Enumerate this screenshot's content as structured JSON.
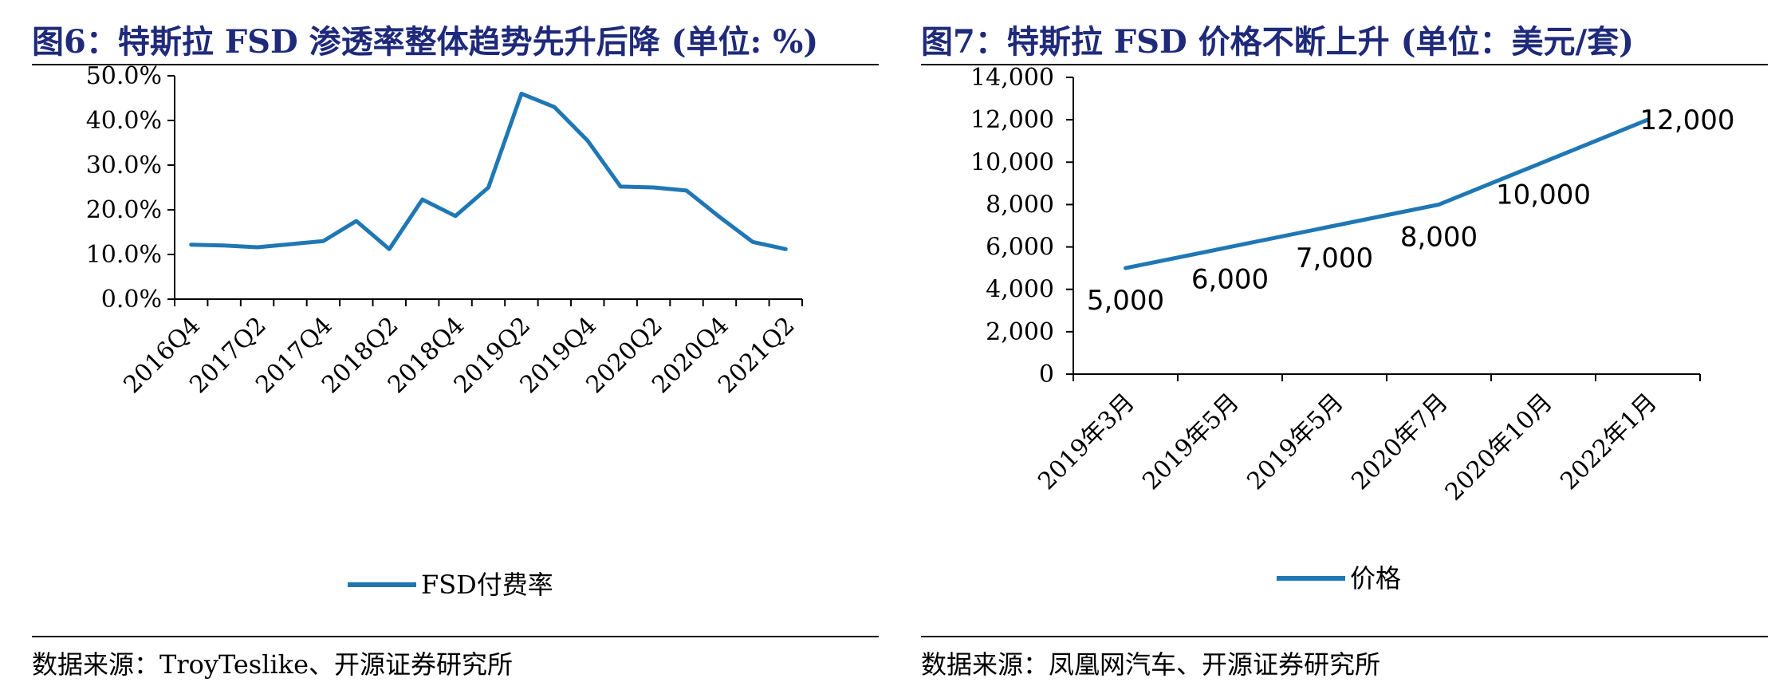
{
  "chart_data": [
    {
      "type": "line",
      "title": "图6：特斯拉 FSD 渗透率整体趋势先升后降 (单位: %)",
      "source": "数据来源：TroyTeslike、开源证券研究所",
      "categories": [
        "2016Q4",
        "2017Q1",
        "2017Q2",
        "2017Q3",
        "2017Q4",
        "2018Q1",
        "2018Q2",
        "2018Q3",
        "2018Q4",
        "2019Q1",
        "2019Q2",
        "2019Q3",
        "2019Q4",
        "2020Q1",
        "2020Q2",
        "2020Q3",
        "2020Q4",
        "2021Q1",
        "2021Q2"
      ],
      "x_tick_labels": [
        "2016Q4",
        "2017Q2",
        "2017Q4",
        "2018Q2",
        "2018Q4",
        "2019Q2",
        "2019Q4",
        "2020Q2",
        "2020Q4",
        "2021Q2"
      ],
      "y_tick_labels": [
        "0.0%",
        "10.0%",
        "20.0%",
        "30.0%",
        "40.0%",
        "50.0%"
      ],
      "ylim": [
        0,
        50
      ],
      "series": [
        {
          "name": "FSD付费率",
          "values": [
            12.2,
            12.0,
            11.6,
            12.3,
            13.0,
            17.5,
            11.2,
            22.3,
            18.6,
            25.0,
            46.0,
            43.0,
            35.5,
            25.2,
            25.0,
            24.3,
            18.4,
            12.8,
            11.2
          ]
        }
      ],
      "color": "#1F77B4",
      "legend": "bottom"
    },
    {
      "type": "line",
      "title": "图7：特斯拉 FSD 价格不断上升 (单位：美元/套)",
      "source": "数据来源：凤凰网汽车、开源证券研究所",
      "categories": [
        "2019年3月",
        "2019年5月",
        "2019年5月",
        "2020年7月",
        "2020年10月",
        "2022年1月"
      ],
      "y_tick_labels": [
        "0",
        "2,000",
        "4,000",
        "6,000",
        "8,000",
        "10,000",
        "12,000",
        "14,000"
      ],
      "ylim": [
        0,
        14000
      ],
      "series": [
        {
          "name": "价格",
          "values": [
            5000,
            6000,
            7000,
            8000,
            10000,
            12000
          ],
          "value_labels": [
            "5,000",
            "6,000",
            "7,000",
            "8,000",
            "10,000",
            "12,000"
          ]
        }
      ],
      "color": "#1F77B4",
      "legend": "bottom"
    }
  ]
}
